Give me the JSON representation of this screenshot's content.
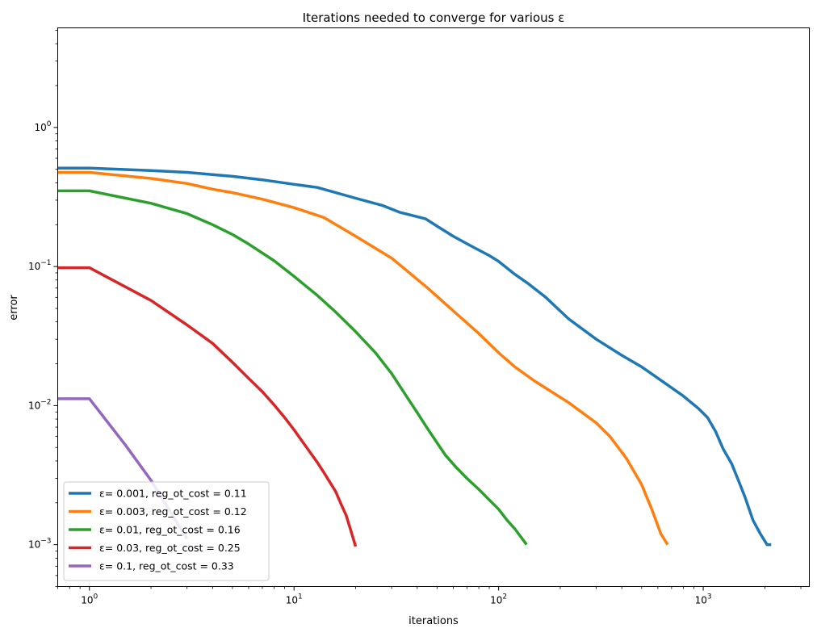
{
  "chart_data": {
    "type": "line",
    "title": "Iterations needed to converge for various ε",
    "xlabel": "iterations",
    "ylabel": "error",
    "xscale": "log",
    "yscale": "log",
    "xlim": [
      0.7,
      3300
    ],
    "ylim": [
      0.0005,
      5.2
    ],
    "xticks": [
      {
        "value": 1,
        "base": "10",
        "exp": "0"
      },
      {
        "value": 10,
        "base": "10",
        "exp": "1"
      },
      {
        "value": 100,
        "base": "10",
        "exp": "2"
      },
      {
        "value": 1000,
        "base": "10",
        "exp": "3"
      }
    ],
    "yticks": [
      {
        "value": 0.001,
        "base": "10",
        "exp": "−3"
      },
      {
        "value": 0.01,
        "base": "10",
        "exp": "−2"
      },
      {
        "value": 0.1,
        "base": "10",
        "exp": "−1"
      },
      {
        "value": 1,
        "base": "10",
        "exp": "0"
      }
    ],
    "grid": false,
    "legend_position": "lower-left",
    "series": [
      {
        "name": "ε= 0.001, reg_ot_cost = 0.11",
        "color": "#1f77b4",
        "x": [
          0.7,
          1,
          2,
          3,
          5,
          7,
          10,
          13,
          20,
          27,
          33,
          44,
          50,
          60,
          75,
          90,
          100,
          120,
          140,
          170,
          220,
          300,
          400,
          500,
          650,
          800,
          950,
          1050,
          1150,
          1250,
          1380,
          1500,
          1600,
          1750,
          1900,
          2050,
          2150
        ],
        "y": [
          0.51,
          0.51,
          0.49,
          0.475,
          0.445,
          0.42,
          0.39,
          0.37,
          0.31,
          0.275,
          0.245,
          0.22,
          0.195,
          0.165,
          0.138,
          0.12,
          0.109,
          0.088,
          0.075,
          0.06,
          0.042,
          0.03,
          0.023,
          0.019,
          0.0145,
          0.0117,
          0.0095,
          0.0082,
          0.0065,
          0.0049,
          0.0038,
          0.0028,
          0.0022,
          0.0015,
          0.0012,
          0.001,
          0.001
        ]
      },
      {
        "name": "ε= 0.003, reg_ot_cost = 0.12",
        "color": "#ff7f0e",
        "x": [
          0.7,
          1,
          2,
          3,
          4,
          5,
          7,
          10,
          14,
          20,
          30,
          45,
          60,
          80,
          100,
          120,
          150,
          220,
          300,
          350,
          420,
          500,
          560,
          620,
          670
        ],
        "y": [
          0.475,
          0.475,
          0.43,
          0.395,
          0.36,
          0.34,
          0.305,
          0.265,
          0.225,
          0.165,
          0.115,
          0.07,
          0.048,
          0.033,
          0.024,
          0.019,
          0.015,
          0.0105,
          0.0075,
          0.006,
          0.0042,
          0.0027,
          0.0018,
          0.0012,
          0.001
        ]
      },
      {
        "name": "ε= 0.01, reg_ot_cost = 0.16",
        "color": "#2ca02c",
        "x": [
          0.7,
          1,
          2,
          3,
          4,
          5,
          6,
          8,
          10,
          13,
          16,
          20,
          25,
          30,
          35,
          40,
          45,
          50,
          55,
          62,
          70,
          80,
          90,
          100,
          110,
          120,
          137
        ],
        "y": [
          0.35,
          0.35,
          0.285,
          0.24,
          0.2,
          0.17,
          0.145,
          0.11,
          0.085,
          0.062,
          0.047,
          0.034,
          0.024,
          0.017,
          0.012,
          0.0089,
          0.0068,
          0.0054,
          0.0044,
          0.0036,
          0.003,
          0.0025,
          0.0021,
          0.0018,
          0.0015,
          0.0013,
          0.001
        ]
      },
      {
        "name": "ε= 0.03, reg_ot_cost = 0.25",
        "color": "#d62728",
        "x": [
          0.7,
          1,
          2,
          3,
          4,
          5,
          6,
          7,
          8,
          9,
          10,
          11,
          12,
          13,
          14,
          15,
          16,
          17,
          18,
          19,
          20
        ],
        "y": [
          0.098,
          0.098,
          0.057,
          0.038,
          0.028,
          0.0205,
          0.0157,
          0.0126,
          0.0101,
          0.0082,
          0.0067,
          0.0055,
          0.0046,
          0.0039,
          0.0033,
          0.0028,
          0.0024,
          0.00195,
          0.00162,
          0.00125,
          0.00097
        ]
      },
      {
        "name": "ε= 0.1, reg_ot_cost = 0.33",
        "color": "#9467bd",
        "x": [
          0.7,
          1,
          1.5,
          2,
          2.5,
          3
        ],
        "y": [
          0.0112,
          0.0112,
          0.0052,
          0.0029,
          0.0017,
          0.0011
        ]
      }
    ]
  }
}
